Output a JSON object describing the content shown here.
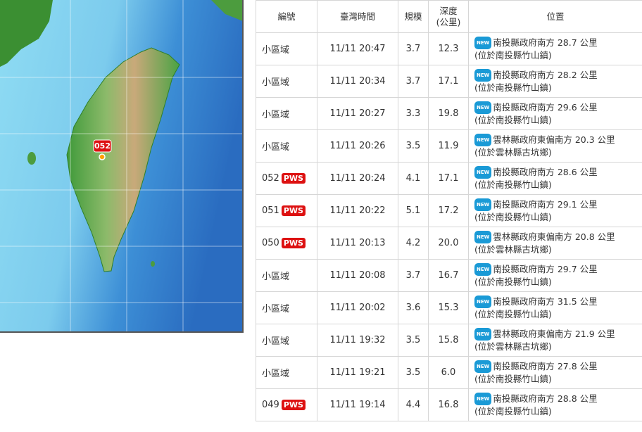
{
  "map": {
    "marker": "052"
  },
  "badges": {
    "new": "NEW",
    "pws": "PWS"
  },
  "table": {
    "headers": [
      "編號",
      "臺灣時間",
      "規模",
      "深度\n(公里)",
      "位置"
    ],
    "rows": [
      {
        "id": "小區域",
        "pws": false,
        "time": "11/11 20:47",
        "mag": "3.7",
        "depth": "12.3",
        "loc1": "南投縣政府南方 28.7 公里",
        "loc2": "(位於南投縣竹山鎮)"
      },
      {
        "id": "小區域",
        "pws": false,
        "time": "11/11 20:34",
        "mag": "3.7",
        "depth": "17.1",
        "loc1": "南投縣政府南方 28.2 公里",
        "loc2": "(位於南投縣竹山鎮)"
      },
      {
        "id": "小區域",
        "pws": false,
        "time": "11/11 20:27",
        "mag": "3.3",
        "depth": "19.8",
        "loc1": "南投縣政府南方 29.6 公里",
        "loc2": "(位於南投縣竹山鎮)"
      },
      {
        "id": "小區域",
        "pws": false,
        "time": "11/11 20:26",
        "mag": "3.5",
        "depth": "11.9",
        "loc1": "雲林縣政府東偏南方 20.3 公里",
        "loc2": "(位於雲林縣古坑鄉)"
      },
      {
        "id": "052",
        "pws": true,
        "time": "11/11 20:24",
        "mag": "4.1",
        "depth": "17.1",
        "loc1": "南投縣政府南方 28.6 公里",
        "loc2": "(位於南投縣竹山鎮)"
      },
      {
        "id": "051",
        "pws": true,
        "time": "11/11 20:22",
        "mag": "5.1",
        "depth": "17.2",
        "loc1": "南投縣政府南方 29.1 公里",
        "loc2": "(位於南投縣竹山鎮)"
      },
      {
        "id": "050",
        "pws": true,
        "time": "11/11 20:13",
        "mag": "4.2",
        "depth": "20.0",
        "loc1": "雲林縣政府東偏南方 20.8 公里",
        "loc2": "(位於雲林縣古坑鄉)"
      },
      {
        "id": "小區域",
        "pws": false,
        "time": "11/11 20:08",
        "mag": "3.7",
        "depth": "16.7",
        "loc1": "南投縣政府南方 29.7 公里",
        "loc2": "(位於南投縣竹山鎮)"
      },
      {
        "id": "小區域",
        "pws": false,
        "time": "11/11 20:02",
        "mag": "3.6",
        "depth": "15.3",
        "loc1": "南投縣政府南方 31.5 公里",
        "loc2": "(位於南投縣竹山鎮)"
      },
      {
        "id": "小區域",
        "pws": false,
        "time": "11/11 19:32",
        "mag": "3.5",
        "depth": "15.8",
        "loc1": "雲林縣政府東偏南方 21.9 公里",
        "loc2": "(位於雲林縣古坑鄉)"
      },
      {
        "id": "小區域",
        "pws": false,
        "time": "11/11 19:21",
        "mag": "3.5",
        "depth": "6.0",
        "loc1": "南投縣政府南方 27.8 公里",
        "loc2": "(位於南投縣竹山鎮)"
      },
      {
        "id": "049",
        "pws": true,
        "time": "11/11 19:14",
        "mag": "4.4",
        "depth": "16.8",
        "loc1": "南投縣政府南方 28.8 公里",
        "loc2": "(位於南投縣竹山鎮)"
      }
    ]
  }
}
